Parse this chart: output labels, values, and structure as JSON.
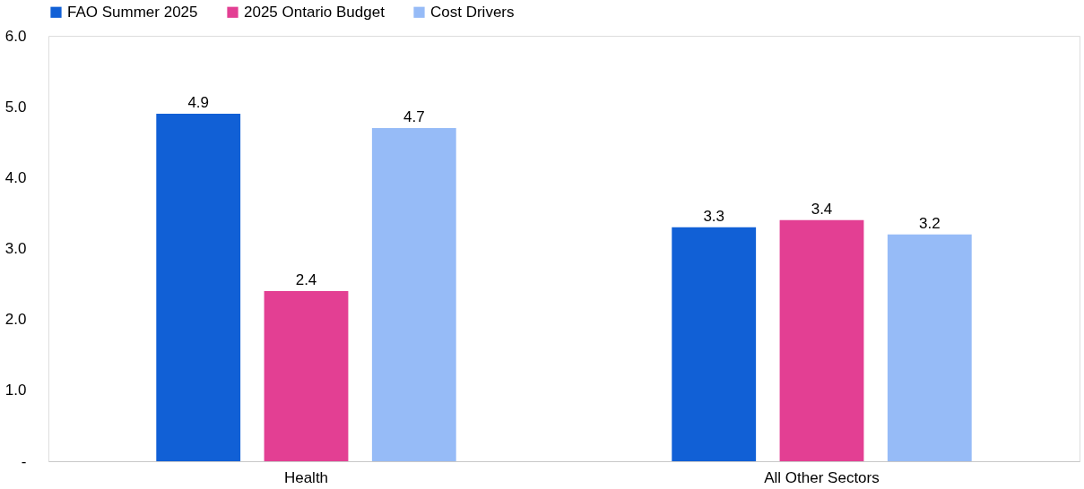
{
  "chart_data": {
    "type": "bar",
    "categories": [
      "Health",
      "All Other Sectors"
    ],
    "series": [
      {
        "name": "FAO Summer 2025",
        "color": "#1160d6",
        "values": [
          4.9,
          3.3
        ]
      },
      {
        "name": "2025 Ontario Budget",
        "color": "#e33f93",
        "values": [
          2.4,
          3.4
        ]
      },
      {
        "name": "Cost Drivers",
        "color": "#96bbf7",
        "values": [
          4.7,
          3.2
        ]
      }
    ],
    "ylim": [
      0,
      6
    ],
    "yticks": [
      {
        "value": 0,
        "label": "-"
      },
      {
        "value": 1,
        "label": "1.0"
      },
      {
        "value": 2,
        "label": "2.0"
      },
      {
        "value": 3,
        "label": "3.0"
      },
      {
        "value": 4,
        "label": "4.0"
      },
      {
        "value": 5,
        "label": "5.0"
      },
      {
        "value": 6,
        "label": "6.0"
      }
    ],
    "data_labels": true,
    "legend": "top",
    "grid": false
  }
}
